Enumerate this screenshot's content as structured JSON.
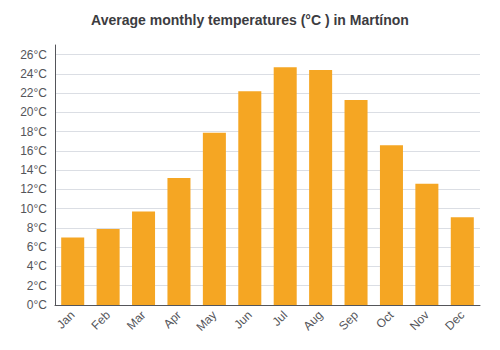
{
  "chart_data": {
    "type": "bar",
    "title": "Average monthly temperatures (°C ) in Martínon",
    "categories": [
      "Jan",
      "Feb",
      "Mar",
      "Apr",
      "May",
      "Jun",
      "Jul",
      "Aug",
      "Sep",
      "Oct",
      "Nov",
      "Dec"
    ],
    "values": [
      7.0,
      7.9,
      9.7,
      13.2,
      17.9,
      22.2,
      24.7,
      24.4,
      21.3,
      16.6,
      12.6,
      9.1
    ],
    "color": "#F5A623",
    "ylim": [
      0,
      27
    ],
    "yticks": [
      {
        "value": 0,
        "label": "0°C"
      },
      {
        "value": 2,
        "label": "2°C"
      },
      {
        "value": 4,
        "label": "4°C"
      },
      {
        "value": 6,
        "label": "6°C"
      },
      {
        "value": 8,
        "label": "8°C"
      },
      {
        "value": 10,
        "label": "10°C"
      },
      {
        "value": 12,
        "label": "12°C"
      },
      {
        "value": 14,
        "label": "14°C"
      },
      {
        "value": 16,
        "label": "16°C"
      },
      {
        "value": 18,
        "label": "18°C"
      },
      {
        "value": 20,
        "label": "20°C"
      },
      {
        "value": 22,
        "label": "22°C"
      },
      {
        "value": 24,
        "label": "24°C"
      },
      {
        "value": 26,
        "label": "26°C"
      }
    ],
    "grid": true
  }
}
